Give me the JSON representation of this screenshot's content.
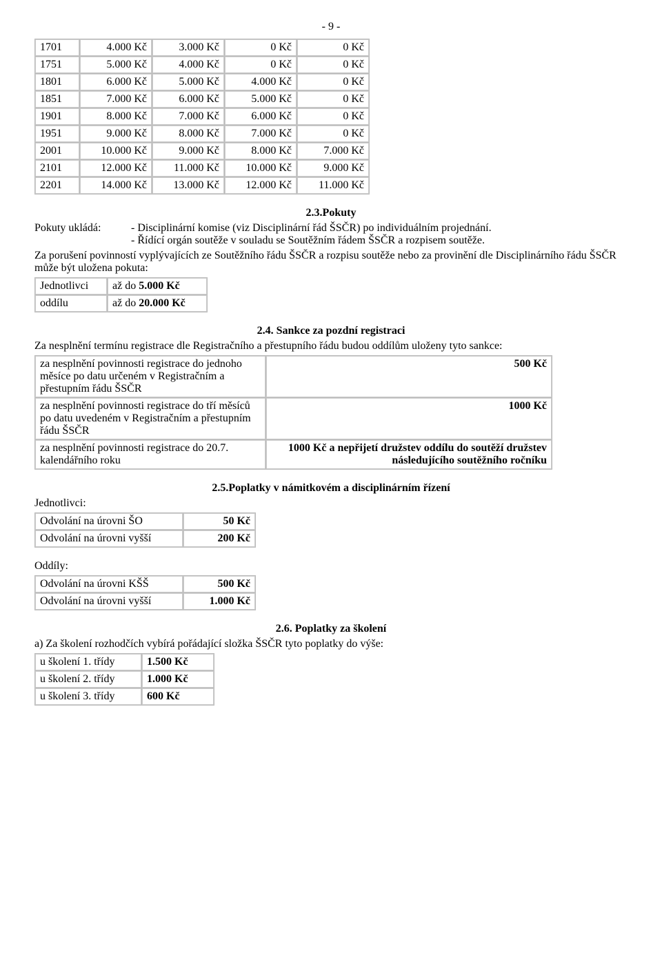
{
  "page_number": "- 9 -",
  "table_main": {
    "rows": [
      [
        "1701",
        "4.000 Kč",
        "3.000 Kč",
        "0 Kč",
        "0 Kč"
      ],
      [
        "1751",
        "5.000 Kč",
        "4.000 Kč",
        "0 Kč",
        "0 Kč"
      ],
      [
        "1801",
        "6.000 Kč",
        "5.000 Kč",
        "4.000 Kč",
        "0 Kč"
      ],
      [
        "1851",
        "7.000 Kč",
        "6.000 Kč",
        "5.000 Kč",
        "0 Kč"
      ],
      [
        "1901",
        "8.000 Kč",
        "7.000 Kč",
        "6.000 Kč",
        "0 Kč"
      ],
      [
        "1951",
        "9.000 Kč",
        "8.000 Kč",
        "7.000 Kč",
        "0 Kč"
      ],
      [
        "2001",
        "10.000 Kč",
        "9.000 Kč",
        "8.000 Kč",
        "7.000 Kč"
      ],
      [
        "2101",
        "12.000 Kč",
        "11.000 Kč",
        "10.000 Kč",
        "9.000 Kč"
      ],
      [
        "2201",
        "14.000 Kč",
        "13.000 Kč",
        "12.000 Kč",
        "11.000 Kč"
      ]
    ]
  },
  "s23": {
    "title": "2.3.Pokuty",
    "uklada_label": "Pokuty ukládá:",
    "bullet1": "- Disciplinární komise (viz Disciplinární řád ŠSČR) po individuálním projednání.",
    "bullet2": "- Řídící orgán soutěže v souladu se Soutěžním řádem ŠSČR a rozpisem soutěže.",
    "para": "Za porušení povinností vyplývajících ze Soutěžního řádu ŠSČR a rozpisu soutěže nebo za provinění dle Disciplinárního řádu ŠSČR může být uložena pokuta:",
    "rows": [
      {
        "who": "Jednotlivci",
        "prefix": "až do ",
        "amount": "5.000 Kč"
      },
      {
        "who": "oddílu",
        "prefix": "až do ",
        "amount": "20.000 Kč"
      }
    ]
  },
  "s24": {
    "title": "2.4. Sankce za pozdní registraci",
    "intro": "Za nesplnění termínu registrace dle Registračního a přestupního řádu budou oddílům uloženy tyto sankce:",
    "rows": [
      {
        "desc": "za nesplnění povinnosti registrace do jednoho měsíce po datu určeném v Registračním a přestupním řádu ŠSČR",
        "val": "500 Kč",
        "bold": true
      },
      {
        "desc": "za nesplnění povinnosti registrace do tří měsíců po datu uvedeném v Registračním a přestupním řádu ŠSČR",
        "val": "1000 Kč",
        "bold": true
      },
      {
        "desc": "za nesplnění povinnosti registrace do 20.7. kalendářního roku",
        "val": "1000 Kč a nepřijetí družstev oddílu do soutěží družstev následujícího soutěžního ročníku",
        "bold": true
      }
    ]
  },
  "s25": {
    "title": "2.5.Poplatky v námitkovém a disciplinárním řízení",
    "jednotlivci_label": "Jednotlivci:",
    "jednotlivci_rows": [
      {
        "label": "Odvolání na úrovni ŠO",
        "val": "50 Kč"
      },
      {
        "label": "Odvolání na úrovni vyšší",
        "val": "200 Kč"
      }
    ],
    "oddily_label": "Oddíly:",
    "oddily_rows": [
      {
        "label": "Odvolání na úrovni KŠŠ",
        "val": "500 Kč"
      },
      {
        "label": "Odvolání na úrovni vyšší",
        "val": "1.000 Kč"
      }
    ]
  },
  "s26": {
    "title": "2.6. Poplatky za školení",
    "intro": "a) Za školení rozhodčích vybírá pořádající složka ŠSČR tyto poplatky do výše:",
    "rows": [
      {
        "label": "u školení 1. třídy",
        "val": "1.500 Kč"
      },
      {
        "label": "u školení 2. třídy",
        "val": "1.000 Kč"
      },
      {
        "label": "u školení 3. třídy",
        "val": "600 Kč"
      }
    ]
  }
}
